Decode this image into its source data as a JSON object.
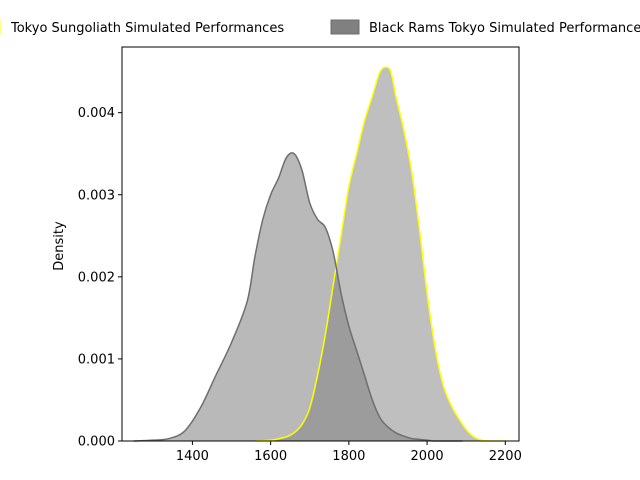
{
  "chart_data": {
    "type": "area",
    "title": "",
    "xlabel": "",
    "ylabel": "Density",
    "xlim": [
      1220,
      2235
    ],
    "ylim": [
      0,
      0.0048
    ],
    "xticks": [
      1400,
      1600,
      1800,
      2000,
      2200
    ],
    "yticks": [
      0.0,
      0.001,
      0.002,
      0.003,
      0.004
    ],
    "ytick_labels": [
      "0.000",
      "0.001",
      "0.002",
      "0.003",
      "0.004"
    ],
    "grid": false,
    "legend_placement": "top, above plot",
    "series": [
      {
        "name": "Tokyo Sungoliath Simulated Performances",
        "fill": "#bfbfbf",
        "edge": "#ffff00",
        "x": [
          1560,
          1600,
          1640,
          1660,
          1680,
          1700,
          1720,
          1740,
          1760,
          1780,
          1800,
          1820,
          1840,
          1860,
          1880,
          1900,
          1910,
          1920,
          1940,
          1960,
          1980,
          2000,
          2020,
          2040,
          2060,
          2080,
          2100,
          2120,
          2140,
          2160,
          2180,
          2200
        ],
        "y": [
          0.0,
          1e-05,
          5e-05,
          0.0001,
          0.0002,
          0.0004,
          0.0008,
          0.0013,
          0.0019,
          0.0025,
          0.0031,
          0.0035,
          0.0039,
          0.0042,
          0.0045,
          0.00455,
          0.00445,
          0.0042,
          0.0038,
          0.0033,
          0.0026,
          0.0018,
          0.00115,
          0.0007,
          0.00045,
          0.00028,
          0.00014,
          5e-05,
          1e-05,
          0.0,
          0.0,
          0.0
        ]
      },
      {
        "name": "Black Rams Tokyo Simulated Performances",
        "fill": "#808080",
        "edge": "#6e6e6e",
        "x": [
          1250,
          1300,
          1340,
          1380,
          1420,
          1460,
          1500,
          1540,
          1560,
          1580,
          1600,
          1620,
          1640,
          1660,
          1680,
          1700,
          1720,
          1740,
          1760,
          1780,
          1800,
          1820,
          1840,
          1860,
          1880,
          1900,
          1920,
          1940,
          1960,
          1980,
          2000,
          2020,
          2060,
          2090
        ],
        "y": [
          0.0,
          1e-05,
          3e-05,
          0.00012,
          0.0004,
          0.0008,
          0.0012,
          0.0017,
          0.00225,
          0.0027,
          0.003,
          0.0032,
          0.00345,
          0.0035,
          0.0033,
          0.0029,
          0.0027,
          0.0026,
          0.0023,
          0.0018,
          0.0014,
          0.0011,
          0.0008,
          0.0005,
          0.00028,
          0.00017,
          0.0001,
          6e-05,
          3e-05,
          2e-05,
          1e-05,
          0.0,
          0.0,
          0.0
        ]
      }
    ]
  }
}
